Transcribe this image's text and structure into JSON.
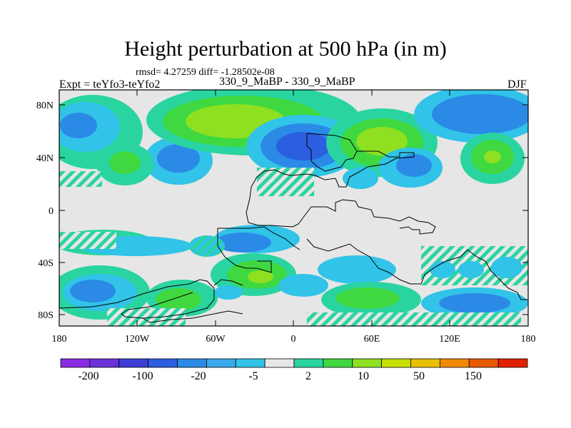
{
  "title": "Height perturbation at 500 hPa (in m)",
  "stats_line": "rmsd= 4.27259 diff= -1.28502e-08",
  "expt_label": "Expt = teYfo3-teYfo2",
  "run_label": "330_9_MaBP - 330_9_MaBP",
  "season": "DJF",
  "y_ticks": [
    "80N",
    "40N",
    "0",
    "40S",
    "80S"
  ],
  "x_ticks": [
    "180",
    "120W",
    "60W",
    "0",
    "60E",
    "120E",
    "180"
  ],
  "colorbar": {
    "colors": [
      "#8a2be2",
      "#6a31d8",
      "#3d3dd6",
      "#2c5fe0",
      "#2a8ae6",
      "#3aa8ea",
      "#31c3e8",
      "#e6e6e6",
      "#2ad4a0",
      "#40d840",
      "#8ee020",
      "#c8e000",
      "#e8c000",
      "#f08a00",
      "#e85a00",
      "#e02000"
    ],
    "labels": [
      "-200",
      "-100",
      "-20",
      "-5",
      "2",
      "10",
      "50",
      "150"
    ]
  },
  "colors": {
    "neutral": "#e6e6e6",
    "light_blue": "#31c3e8",
    "mid_blue": "#2a8ae6",
    "deep_blue": "#2c5fe0",
    "teal": "#2ad4a0",
    "green": "#40d840",
    "yellow_green": "#c8e000"
  }
}
